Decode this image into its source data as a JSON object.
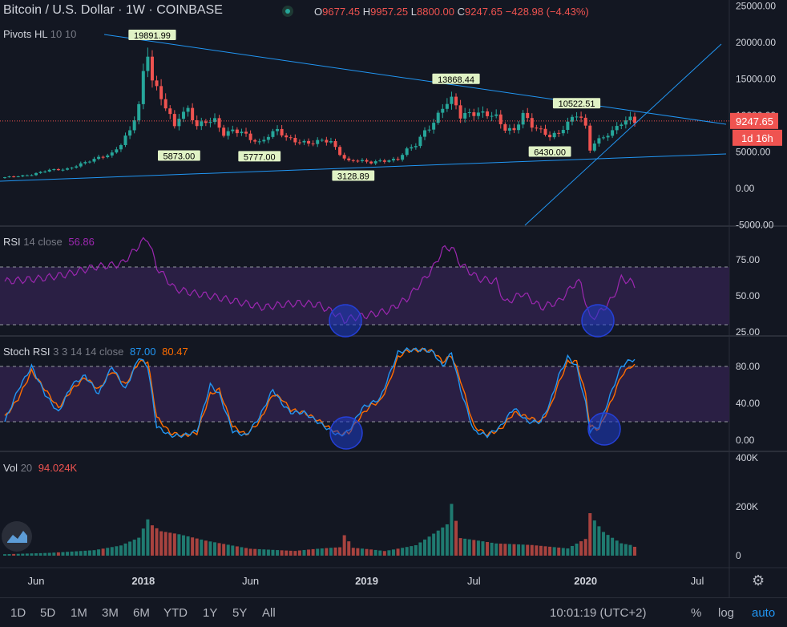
{
  "header": {
    "symbol_title": "Bitcoin / U.S. Dollar",
    "interval": "1W",
    "exchange": "COINBASE",
    "ohlc": {
      "open_label": "O",
      "open": "9677.45",
      "high_label": "H",
      "high": "9957.25",
      "low_label": "L",
      "low": "8800.00",
      "close_label": "C",
      "close": "9247.65",
      "change": "−428.98 (−4.43%)"
    }
  },
  "indicators": {
    "pivots": {
      "name": "Pivots HL",
      "params": "10 10"
    },
    "rsi": {
      "name": "RSI",
      "params": "14 close",
      "value": "56.86"
    },
    "stoch": {
      "name": "Stoch RSI",
      "params": "3 3 14 14 close",
      "k": "87.00",
      "d": "80.47"
    },
    "vol": {
      "name": "Vol",
      "params": "20",
      "value": "94.024K"
    }
  },
  "price_axis": {
    "price_ticks": [
      "25000.00",
      "20000.00",
      "15000.00",
      "10000.00",
      "5000.00",
      "0.00",
      "-5000.00"
    ],
    "rsi_ticks": [
      "75.00",
      "50.00",
      "25.00"
    ],
    "stoch_ticks": [
      "80.00",
      "40.00",
      "0.00"
    ],
    "vol_ticks": [
      "400K",
      "200K",
      "0"
    ],
    "last_price": "9247.65",
    "countdown": "1d 16h"
  },
  "time_axis": [
    "Jun",
    "2018",
    "Jun",
    "2019",
    "Jul",
    "2020",
    "Jul"
  ],
  "bottom_bar": {
    "ranges": [
      "1D",
      "5D",
      "1M",
      "3M",
      "6M",
      "YTD",
      "1Y",
      "5Y",
      "All"
    ],
    "clock": "10:01:19 (UTC+2)",
    "percent": "%",
    "log": "log",
    "auto": "auto"
  },
  "colors": {
    "background": "#131722",
    "bull": "#26a69a",
    "bear": "#ef5350",
    "trendline": "#2196f3",
    "rsi_line": "#9c27b0",
    "rsi_band": "#2a1f44",
    "stoch_k": "#2196f3",
    "stoch_d": "#ff6d00",
    "pivot_label_bg": "#e0f2c5",
    "highlight_circle": "#1e3cc8"
  },
  "chart_data": {
    "type": "candlestick",
    "symbol": "Bitcoin / U.S. Dollar",
    "interval": "1W",
    "x_ticks": [
      "Jun",
      "2018",
      "Jun",
      "2019",
      "Jul",
      "2020",
      "Jul"
    ],
    "price_range": [
      -5000,
      25000
    ],
    "pivots": [
      {
        "label": "19891.99",
        "week": 33,
        "price": 19892,
        "kind": "high"
      },
      {
        "label": "5873.00",
        "week": 39,
        "price": 5873,
        "kind": "low"
      },
      {
        "label": "5777.00",
        "week": 57,
        "price": 5777,
        "kind": "low"
      },
      {
        "label": "3128.89",
        "week": 78,
        "price": 3129,
        "kind": "low"
      },
      {
        "label": "13868.44",
        "week": 101,
        "price": 13868,
        "kind": "high"
      },
      {
        "label": "6430.00",
        "week": 122,
        "price": 6430,
        "kind": "low"
      },
      {
        "label": "10522.51",
        "week": 128,
        "price": 10523,
        "kind": "high"
      }
    ],
    "close_anchors": [
      [
        0,
        1500
      ],
      [
        6,
        1900
      ],
      [
        10,
        2500
      ],
      [
        14,
        2700
      ],
      [
        18,
        3500
      ],
      [
        22,
        4500
      ],
      [
        24,
        4800
      ],
      [
        26,
        6000
      ],
      [
        28,
        7800
      ],
      [
        30,
        11500
      ],
      [
        31,
        16000
      ],
      [
        32,
        19000
      ],
      [
        33,
        15000
      ],
      [
        34,
        13500
      ],
      [
        36,
        11000
      ],
      [
        38,
        8500
      ],
      [
        39,
        10000
      ],
      [
        41,
        11000
      ],
      [
        43,
        8500
      ],
      [
        45,
        9000
      ],
      [
        47,
        9300
      ],
      [
        49,
        7600
      ],
      [
        51,
        8000
      ],
      [
        53,
        7600
      ],
      [
        55,
        6700
      ],
      [
        57,
        6300
      ],
      [
        59,
        7400
      ],
      [
        61,
        8000
      ],
      [
        63,
        6800
      ],
      [
        65,
        6500
      ],
      [
        67,
        6400
      ],
      [
        69,
        6300
      ],
      [
        71,
        6500
      ],
      [
        73,
        6300
      ],
      [
        75,
        4800
      ],
      [
        76,
        4200
      ],
      [
        77,
        3800
      ],
      [
        78,
        3900
      ],
      [
        80,
        3700
      ],
      [
        82,
        3500
      ],
      [
        84,
        3800
      ],
      [
        86,
        3900
      ],
      [
        88,
        4000
      ],
      [
        90,
        5200
      ],
      [
        92,
        6000
      ],
      [
        94,
        8000
      ],
      [
        96,
        9000
      ],
      [
        98,
        11000
      ],
      [
        99,
        11500
      ],
      [
        100,
        12000
      ],
      [
        101,
        11500
      ],
      [
        102,
        10000
      ],
      [
        104,
        10500
      ],
      [
        106,
        10200
      ],
      [
        108,
        10000
      ],
      [
        110,
        9800
      ],
      [
        112,
        8300
      ],
      [
        114,
        8000
      ],
      [
        116,
        10000
      ],
      [
        118,
        8500
      ],
      [
        120,
        8000
      ],
      [
        122,
        7300
      ],
      [
        124,
        7500
      ],
      [
        126,
        8800
      ],
      [
        128,
        10200
      ],
      [
        129,
        9800
      ],
      [
        130,
        8500
      ],
      [
        131,
        5400
      ],
      [
        132,
        6300
      ],
      [
        134,
        6900
      ],
      [
        136,
        7700
      ],
      [
        138,
        9200
      ],
      [
        140,
        9700
      ],
      [
        141,
        9247
      ]
    ],
    "volume_anchors": [
      [
        0,
        8
      ],
      [
        10,
        12
      ],
      [
        20,
        20
      ],
      [
        26,
        35
      ],
      [
        30,
        60
      ],
      [
        31,
        90
      ],
      [
        32,
        120
      ],
      [
        33,
        100
      ],
      [
        35,
        80
      ],
      [
        39,
        70
      ],
      [
        45,
        50
      ],
      [
        55,
        25
      ],
      [
        65,
        20
      ],
      [
        75,
        45
      ],
      [
        76,
        110
      ],
      [
        78,
        40
      ],
      [
        85,
        20
      ],
      [
        92,
        40
      ],
      [
        96,
        80
      ],
      [
        99,
        110
      ],
      [
        100,
        180
      ],
      [
        102,
        60
      ],
      [
        110,
        40
      ],
      [
        118,
        35
      ],
      [
        122,
        30
      ],
      [
        126,
        25
      ],
      [
        130,
        60
      ],
      [
        131,
        155
      ],
      [
        132,
        130
      ],
      [
        134,
        90
      ],
      [
        138,
        50
      ],
      [
        140,
        45
      ],
      [
        141,
        38
      ]
    ],
    "volume_range": [
      0,
      400000
    ],
    "rsi": {
      "name": "RSI 14 close",
      "value": 56.86,
      "levels": [
        70,
        30
      ],
      "range": [
        20,
        90
      ],
      "anchors": [
        [
          0,
          60
        ],
        [
          8,
          62
        ],
        [
          14,
          65
        ],
        [
          20,
          70
        ],
        [
          26,
          72
        ],
        [
          28,
          78
        ],
        [
          30,
          85
        ],
        [
          31,
          88
        ],
        [
          32,
          90
        ],
        [
          34,
          70
        ],
        [
          38,
          55
        ],
        [
          42,
          52
        ],
        [
          46,
          50
        ],
        [
          52,
          46
        ],
        [
          58,
          42
        ],
        [
          62,
          44
        ],
        [
          66,
          45
        ],
        [
          70,
          44
        ],
        [
          74,
          38
        ],
        [
          76,
          33
        ],
        [
          78,
          35
        ],
        [
          82,
          37
        ],
        [
          86,
          40
        ],
        [
          90,
          48
        ],
        [
          94,
          62
        ],
        [
          96,
          70
        ],
        [
          98,
          82
        ],
        [
          100,
          84
        ],
        [
          102,
          72
        ],
        [
          106,
          62
        ],
        [
          110,
          60
        ],
        [
          112,
          45
        ],
        [
          116,
          52
        ],
        [
          120,
          42
        ],
        [
          124,
          46
        ],
        [
          128,
          60
        ],
        [
          129,
          58
        ],
        [
          131,
          34
        ],
        [
          133,
          38
        ],
        [
          136,
          48
        ],
        [
          138,
          62
        ],
        [
          140,
          60
        ],
        [
          141,
          56.86
        ]
      ]
    },
    "stoch_rsi": {
      "name": "Stoch RSI 3 3 14 14 close",
      "k_value": 87.0,
      "d_value": 80.47,
      "levels": [
        80,
        20
      ],
      "range": [
        -5,
        100
      ],
      "k_anchors": [
        [
          0,
          20
        ],
        [
          3,
          55
        ],
        [
          6,
          80
        ],
        [
          9,
          50
        ],
        [
          12,
          30
        ],
        [
          15,
          60
        ],
        [
          18,
          70
        ],
        [
          21,
          50
        ],
        [
          24,
          80
        ],
        [
          27,
          55
        ],
        [
          30,
          90
        ],
        [
          32,
          80
        ],
        [
          34,
          15
        ],
        [
          37,
          5
        ],
        [
          40,
          5
        ],
        [
          43,
          10
        ],
        [
          46,
          60
        ],
        [
          48,
          50
        ],
        [
          51,
          10
        ],
        [
          54,
          5
        ],
        [
          57,
          25
        ],
        [
          60,
          55
        ],
        [
          62,
          40
        ],
        [
          64,
          30
        ],
        [
          67,
          30
        ],
        [
          70,
          20
        ],
        [
          73,
          10
        ],
        [
          75,
          5
        ],
        [
          77,
          10
        ],
        [
          80,
          35
        ],
        [
          82,
          40
        ],
        [
          84,
          45
        ],
        [
          86,
          70
        ],
        [
          88,
          95
        ],
        [
          90,
          98
        ],
        [
          94,
          98
        ],
        [
          96,
          95
        ],
        [
          98,
          80
        ],
        [
          100,
          95
        ],
        [
          102,
          55
        ],
        [
          105,
          10
        ],
        [
          108,
          5
        ],
        [
          111,
          15
        ],
        [
          114,
          35
        ],
        [
          117,
          20
        ],
        [
          120,
          20
        ],
        [
          122,
          40
        ],
        [
          124,
          70
        ],
        [
          126,
          90
        ],
        [
          128,
          80
        ],
        [
          130,
          40
        ],
        [
          131,
          10
        ],
        [
          133,
          15
        ],
        [
          136,
          55
        ],
        [
          138,
          80
        ],
        [
          140,
          87
        ],
        [
          141,
          87
        ]
      ],
      "d_anchors": [
        [
          0,
          25
        ],
        [
          3,
          45
        ],
        [
          6,
          75
        ],
        [
          9,
          55
        ],
        [
          12,
          35
        ],
        [
          15,
          55
        ],
        [
          18,
          68
        ],
        [
          21,
          55
        ],
        [
          24,
          75
        ],
        [
          27,
          60
        ],
        [
          30,
          85
        ],
        [
          32,
          85
        ],
        [
          34,
          25
        ],
        [
          37,
          8
        ],
        [
          40,
          5
        ],
        [
          43,
          8
        ],
        [
          46,
          50
        ],
        [
          48,
          55
        ],
        [
          51,
          15
        ],
        [
          54,
          6
        ],
        [
          57,
          20
        ],
        [
          60,
          50
        ],
        [
          62,
          45
        ],
        [
          64,
          33
        ],
        [
          67,
          30
        ],
        [
          70,
          22
        ],
        [
          73,
          12
        ],
        [
          75,
          7
        ],
        [
          77,
          8
        ],
        [
          80,
          28
        ],
        [
          82,
          38
        ],
        [
          84,
          42
        ],
        [
          86,
          62
        ],
        [
          88,
          90
        ],
        [
          90,
          97
        ],
        [
          94,
          98
        ],
        [
          96,
          96
        ],
        [
          98,
          85
        ],
        [
          100,
          92
        ],
        [
          102,
          65
        ],
        [
          105,
          15
        ],
        [
          108,
          6
        ],
        [
          111,
          12
        ],
        [
          114,
          30
        ],
        [
          117,
          25
        ],
        [
          120,
          20
        ],
        [
          122,
          35
        ],
        [
          124,
          62
        ],
        [
          126,
          85
        ],
        [
          128,
          85
        ],
        [
          130,
          50
        ],
        [
          131,
          15
        ],
        [
          133,
          12
        ],
        [
          136,
          45
        ],
        [
          138,
          70
        ],
        [
          140,
          80
        ],
        [
          141,
          80.47
        ]
      ]
    }
  }
}
